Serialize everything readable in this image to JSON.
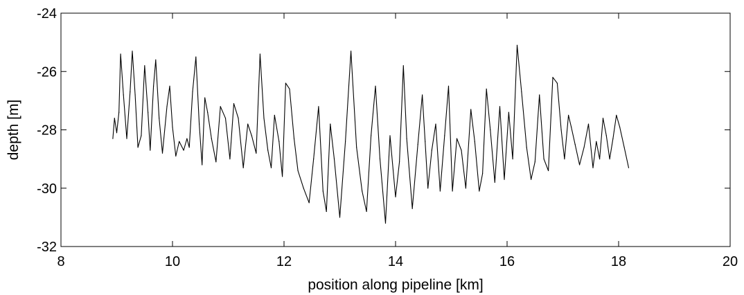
{
  "chart_data": {
    "type": "line",
    "title": "",
    "xlabel": "position along pipeline [km]",
    "ylabel": "depth [m]",
    "xlim": [
      8,
      20
    ],
    "ylim": [
      -32,
      -24
    ],
    "xticks": [
      8,
      10,
      12,
      14,
      16,
      18,
      20
    ],
    "xtick_labels": [
      "8",
      "10",
      "12",
      "14",
      "16",
      "18",
      "20"
    ],
    "yticks": [
      -32,
      -30,
      -28,
      -26,
      -24
    ],
    "ytick_labels": [
      "-32",
      "-30",
      "-28",
      "-26",
      "-24"
    ],
    "grid": false,
    "line_color": "#000000",
    "series": [
      {
        "x": [
          8.93,
          8.96,
          9.0,
          9.04,
          9.07,
          9.12,
          9.18,
          9.24,
          9.28,
          9.33,
          9.38,
          9.44,
          9.5,
          9.56,
          9.6,
          9.66,
          9.7,
          9.76,
          9.82,
          9.9,
          9.95,
          10.0,
          10.06,
          10.12,
          10.2,
          10.26,
          10.3,
          10.36,
          10.42,
          10.48,
          10.53,
          10.58,
          10.63,
          10.7,
          10.78,
          10.86,
          10.95,
          11.03,
          11.1,
          11.18,
          11.27,
          11.35,
          11.42,
          11.5,
          11.57,
          11.64,
          11.71,
          11.77,
          11.83,
          11.91,
          11.97,
          12.03,
          12.1,
          12.18,
          12.25,
          12.35,
          12.45,
          12.53,
          12.62,
          12.7,
          12.76,
          12.83,
          12.9,
          13.0,
          13.1,
          13.2,
          13.3,
          13.4,
          13.48,
          13.56,
          13.64,
          13.72,
          13.82,
          13.9,
          14.0,
          14.07,
          14.14,
          14.2,
          14.3,
          14.4,
          14.48,
          14.53,
          14.58,
          14.65,
          14.72,
          14.8,
          14.88,
          14.95,
          15.02,
          15.1,
          15.18,
          15.26,
          15.35,
          15.42,
          15.5,
          15.56,
          15.63,
          15.7,
          15.78,
          15.87,
          15.95,
          16.03,
          16.1,
          16.18,
          16.26,
          16.35,
          16.43,
          16.5,
          16.58,
          16.66,
          16.74,
          16.82,
          16.9,
          16.97,
          17.03,
          17.1,
          17.15,
          17.22,
          17.3,
          17.38,
          17.46,
          17.54,
          17.6,
          17.66,
          17.72,
          17.78,
          17.84,
          17.9,
          17.96,
          18.02,
          18.1,
          18.18
        ],
        "y": [
          -28.3,
          -27.6,
          -28.1,
          -27.4,
          -25.4,
          -26.8,
          -28.3,
          -26.7,
          -25.3,
          -26.8,
          -28.6,
          -28.2,
          -25.8,
          -27.4,
          -28.7,
          -26.5,
          -25.6,
          -27.6,
          -28.8,
          -27.2,
          -26.5,
          -27.9,
          -28.9,
          -28.4,
          -28.7,
          -28.3,
          -28.6,
          -26.7,
          -25.5,
          -27.8,
          -29.2,
          -26.9,
          -27.4,
          -28.3,
          -29.1,
          -27.2,
          -27.6,
          -29.0,
          -27.1,
          -27.6,
          -29.3,
          -27.8,
          -28.2,
          -28.8,
          -25.4,
          -27.6,
          -28.7,
          -29.3,
          -27.5,
          -28.4,
          -29.6,
          -26.4,
          -26.6,
          -28.3,
          -29.4,
          -30.0,
          -30.5,
          -29.0,
          -27.2,
          -30.1,
          -30.8,
          -27.8,
          -29.0,
          -31.0,
          -28.4,
          -25.3,
          -28.6,
          -30.1,
          -30.8,
          -28.2,
          -26.5,
          -29.0,
          -31.2,
          -28.2,
          -30.3,
          -29.1,
          -25.8,
          -28.3,
          -30.7,
          -28.5,
          -26.8,
          -28.4,
          -30.0,
          -28.7,
          -27.8,
          -30.1,
          -28.2,
          -26.5,
          -30.1,
          -28.3,
          -28.7,
          -30.0,
          -27.3,
          -28.4,
          -30.1,
          -29.5,
          -26.6,
          -28.0,
          -29.8,
          -27.2,
          -29.7,
          -27.4,
          -29.0,
          -25.1,
          -26.7,
          -28.6,
          -29.7,
          -29.1,
          -26.8,
          -29.0,
          -29.4,
          -26.2,
          -26.4,
          -28.0,
          -29.0,
          -27.5,
          -27.9,
          -28.5,
          -29.2,
          -28.6,
          -27.8,
          -29.3,
          -28.4,
          -29.0,
          -27.6,
          -28.2,
          -29.0,
          -28.3,
          -27.5,
          -27.9,
          -28.6,
          -29.3
        ]
      }
    ]
  }
}
